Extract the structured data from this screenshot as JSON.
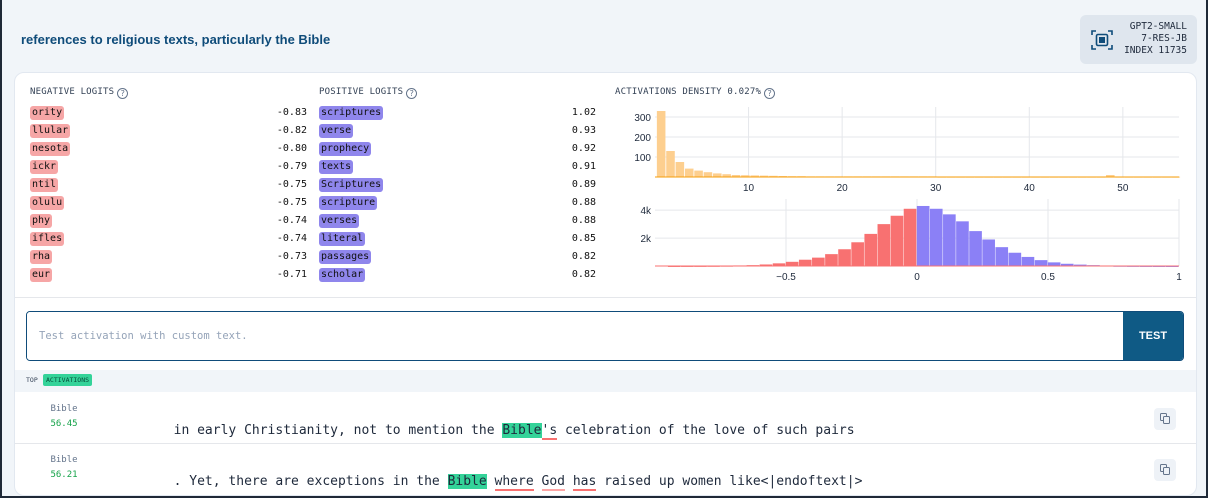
{
  "header": {
    "feature_title": "references to religious texts, particularly the Bible",
    "model_lines": [
      "GPT2-SMALL",
      "7-RES-JB",
      "INDEX 11735"
    ],
    "chip_icon": "chip-icon"
  },
  "negative_logits": {
    "label": "NEGATIVE LOGITS",
    "help": "?",
    "items": [
      {
        "token": "ority",
        "value": "-0.83"
      },
      {
        "token": "llular",
        "value": "-0.82"
      },
      {
        "token": "nesota",
        "value": "-0.80"
      },
      {
        "token": "ickr",
        "value": "-0.79"
      },
      {
        "token": "ntil",
        "value": "-0.75"
      },
      {
        "token": "olulu",
        "value": "-0.75"
      },
      {
        "token": "phy",
        "value": "-0.74"
      },
      {
        "token": "ifles",
        "value": "-0.74"
      },
      {
        "token": "rha",
        "value": "-0.73"
      },
      {
        "token": "eur",
        "value": "-0.71"
      }
    ]
  },
  "positive_logits": {
    "label": "POSITIVE LOGITS",
    "help": "?",
    "items": [
      {
        "token": "scriptures",
        "value": "1.02"
      },
      {
        "token": "verse",
        "value": "0.93"
      },
      {
        "token": "prophecy",
        "value": "0.92"
      },
      {
        "token": "texts",
        "value": "0.91"
      },
      {
        "token": "Scriptures",
        "value": "0.89"
      },
      {
        "token": "scripture",
        "value": "0.88"
      },
      {
        "token": "verses",
        "value": "0.88"
      },
      {
        "token": "literal",
        "value": "0.85"
      },
      {
        "token": "passages",
        "value": "0.82"
      },
      {
        "token": "scholar",
        "value": "0.82"
      }
    ]
  },
  "density": {
    "label": "ACTIVATIONS DENSITY 0.027%",
    "help": "?"
  },
  "chart_data": [
    {
      "type": "bar",
      "name": "activations-histogram",
      "color": "#fdcf8f",
      "x": [
        0.7,
        1.7,
        2.7,
        3.7,
        4.7,
        5.7,
        6.7,
        7.7,
        8.7,
        9.7,
        10.7,
        11.7,
        12.7,
        13.7,
        14.7,
        15.7,
        16.7,
        17.7,
        18.7,
        19.7,
        20.7,
        21.7,
        22.7,
        23.7,
        24.7,
        25.7,
        26.7,
        27.7,
        28.7,
        29.7,
        30.7,
        31.7,
        32.7,
        33.7,
        34.7,
        35.7,
        36.7,
        37.7,
        38.7,
        39.7,
        40.7,
        41.7,
        42.7,
        43.7,
        44.7,
        45.7,
        46.7,
        47.7,
        48.7,
        49.7,
        50.7,
        51.7,
        52.7,
        53.7,
        54.7,
        55.7
      ],
      "values": [
        330,
        130,
        75,
        42,
        32,
        24,
        18,
        14,
        10,
        9,
        8,
        7,
        6,
        5,
        4,
        4,
        3,
        3,
        3,
        3,
        3,
        3,
        3,
        3,
        3,
        3,
        3,
        3,
        3,
        3,
        2,
        2,
        2,
        2,
        2,
        2,
        2,
        2,
        2,
        2,
        2,
        2,
        2,
        2,
        2,
        2,
        2,
        2,
        10,
        2,
        2,
        2,
        2,
        2,
        2,
        2
      ],
      "xticks": [
        "10",
        "20",
        "30",
        "40",
        "50"
      ],
      "xtick_values": [
        10,
        20,
        30,
        40,
        50
      ],
      "yticks": [
        "100",
        "200",
        "300"
      ],
      "ytick_values": [
        100,
        200,
        300
      ],
      "xlim": [
        0,
        56
      ],
      "ylim": [
        0,
        350
      ]
    },
    {
      "type": "bar",
      "name": "logits-histogram",
      "negative_color": "#f87171",
      "positive_color": "#8b80f6",
      "x": [
        -0.925,
        -0.875,
        -0.825,
        -0.775,
        -0.725,
        -0.675,
        -0.625,
        -0.575,
        -0.525,
        -0.475,
        -0.425,
        -0.375,
        -0.325,
        -0.275,
        -0.225,
        -0.175,
        -0.125,
        -0.075,
        -0.025,
        0.025,
        0.075,
        0.125,
        0.175,
        0.225,
        0.275,
        0.325,
        0.375,
        0.425,
        0.475,
        0.525,
        0.575,
        0.625,
        0.675,
        0.725,
        0.775,
        0.825,
        0.875,
        0.925,
        0.975
      ],
      "values": [
        5,
        8,
        10,
        15,
        25,
        40,
        60,
        110,
        190,
        300,
        450,
        600,
        850,
        1200,
        1700,
        2300,
        3000,
        3600,
        4100,
        4300,
        4100,
        3700,
        3200,
        2500,
        1900,
        1350,
        950,
        650,
        420,
        260,
        160,
        100,
        60,
        35,
        20,
        12,
        8,
        5,
        3
      ],
      "xticks": [
        "−0.5",
        "0",
        "0.5",
        "1"
      ],
      "xtick_values": [
        -0.5,
        0,
        0.5,
        1
      ],
      "yticks": [
        "2k",
        "4k"
      ],
      "ytick_values": [
        2000,
        4000
      ],
      "xlim": [
        -1,
        1
      ],
      "ylim": [
        0,
        4800
      ]
    }
  ],
  "test": {
    "placeholder": "Test activation with custom text.",
    "button_label": "TEST"
  },
  "top_activations": {
    "label": "TOP",
    "badge": "ACTIVATIONS",
    "rows": [
      {
        "token": "Bible",
        "score": "56.45",
        "segments": [
          {
            "text": "in early Christianity, not to mention the ",
            "style": ""
          },
          {
            "text": "Bible",
            "style": "hl"
          },
          {
            "text": "'s",
            "style": "ul"
          },
          {
            "text": " celebration of the love of such pairs",
            "style": ""
          }
        ]
      },
      {
        "token": "Bible",
        "score": "56.21",
        "segments": [
          {
            "text": ". Yet, there are exceptions in the ",
            "style": ""
          },
          {
            "text": "Bible",
            "style": "hl"
          },
          {
            "text": " ",
            "style": ""
          },
          {
            "text": "where",
            "style": "ul"
          },
          {
            "text": " ",
            "style": ""
          },
          {
            "text": "God",
            "style": "ul2"
          },
          {
            "text": " ",
            "style": ""
          },
          {
            "text": "has",
            "style": "ul"
          },
          {
            "text": " raised up women like<|endoftext|>",
            "style": ""
          }
        ]
      }
    ]
  }
}
